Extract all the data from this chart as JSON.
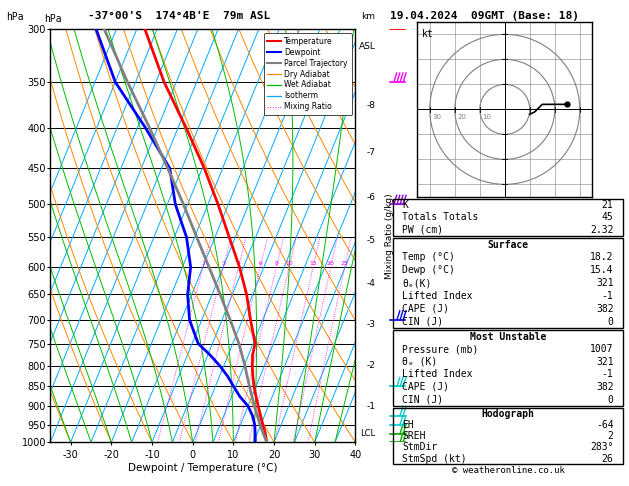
{
  "title_left": "-37°00'S  174°4B'E  79m ASL",
  "title_right": "19.04.2024  09GMT (Base: 18)",
  "xlabel": "Dewpoint / Temperature (°C)",
  "ylabel_left": "hPa",
  "ylabel_right_km": "km\nASL",
  "ylabel_mid": "Mixing Ratio (g/kg)",
  "pressure_ticks": [
    300,
    350,
    400,
    450,
    500,
    550,
    600,
    650,
    700,
    750,
    800,
    850,
    900,
    950,
    1000
  ],
  "temp_xticks": [
    -30,
    -20,
    -10,
    0,
    10,
    20,
    30,
    40
  ],
  "temp_color": "#ff0000",
  "dewp_color": "#0000ff",
  "parcel_color": "#808080",
  "dry_adiabat_color": "#ff8800",
  "wet_adiabat_color": "#00bb00",
  "isotherm_color": "#00aaff",
  "mix_ratio_color": "#ff00ff",
  "background": "#ffffff",
  "P_min": 300,
  "P_max": 1000,
  "T_min": -35,
  "T_max": 40,
  "temp_profile_pressure": [
    1000,
    975,
    950,
    925,
    900,
    875,
    850,
    825,
    800,
    775,
    750,
    700,
    650,
    600,
    550,
    500,
    450,
    400,
    350,
    300
  ],
  "temp_profile_temp": [
    18.2,
    17.0,
    15.5,
    14.0,
    12.5,
    11.0,
    9.5,
    8.2,
    7.0,
    6.0,
    5.5,
    2.0,
    -1.5,
    -6.0,
    -11.5,
    -17.5,
    -24.5,
    -33.0,
    -43.0,
    -53.0
  ],
  "dewp_profile_pressure": [
    1000,
    975,
    950,
    925,
    900,
    875,
    850,
    825,
    800,
    775,
    750,
    700,
    650,
    600,
    550,
    500,
    450,
    400,
    350,
    300
  ],
  "dewp_profile_dewp": [
    15.4,
    14.5,
    13.5,
    12.0,
    10.0,
    7.0,
    4.5,
    2.0,
    -1.0,
    -4.5,
    -8.5,
    -13.0,
    -16.0,
    -18.0,
    -22.0,
    -28.0,
    -33.0,
    -43.0,
    -55.0,
    -65.0
  ],
  "parcel_profile_pressure": [
    1000,
    975,
    950,
    925,
    900,
    875,
    850,
    825,
    800,
    750,
    700,
    650,
    600,
    550,
    500,
    450,
    400,
    350,
    300
  ],
  "parcel_profile_temp": [
    18.2,
    16.5,
    14.8,
    13.2,
    11.6,
    10.0,
    8.4,
    6.8,
    5.2,
    1.5,
    -3.0,
    -8.0,
    -13.5,
    -19.5,
    -26.0,
    -33.5,
    -42.0,
    -52.0,
    -63.0
  ],
  "km_ticks": [
    1,
    2,
    3,
    4,
    5,
    6,
    7,
    8
  ],
  "km_pressures": [
    900,
    800,
    710,
    630,
    555,
    490,
    430,
    375
  ],
  "mix_ratios": [
    2,
    3,
    4,
    6,
    8,
    10,
    15,
    20,
    25
  ],
  "lcl_pressure": 975,
  "wind_levels": [
    1000,
    975,
    950,
    925,
    850,
    700,
    500,
    350,
    300
  ],
  "wind_colors": [
    "#00aa00",
    "#00aa00",
    "#00cccc",
    "#00cccc",
    "#00cccc",
    "#0000ff",
    "#8800cc",
    "#ff00ff",
    "#ff0000"
  ],
  "wind_barb_types": [
    "small",
    "small",
    "small",
    "small",
    "medium",
    "medium",
    "large",
    "large",
    "large"
  ],
  "hodo_u": [
    10,
    12,
    13,
    14,
    15,
    18,
    22,
    25
  ],
  "hodo_v": [
    -2,
    -1,
    0,
    1,
    2,
    2,
    2,
    2
  ],
  "info_K": 21,
  "info_TT": 45,
  "info_PW": 2.32,
  "surf_temp": 18.2,
  "surf_dewp": 15.4,
  "surf_theta": 321,
  "surf_li": -1,
  "surf_cape": 382,
  "surf_cin": 0,
  "mu_pres": 1007,
  "mu_theta": 321,
  "mu_li": -1,
  "mu_cape": 382,
  "mu_cin": 0,
  "hodo_eh": -64,
  "hodo_sreh": 2,
  "hodo_stmdir": "283°",
  "hodo_stmspd": 26
}
